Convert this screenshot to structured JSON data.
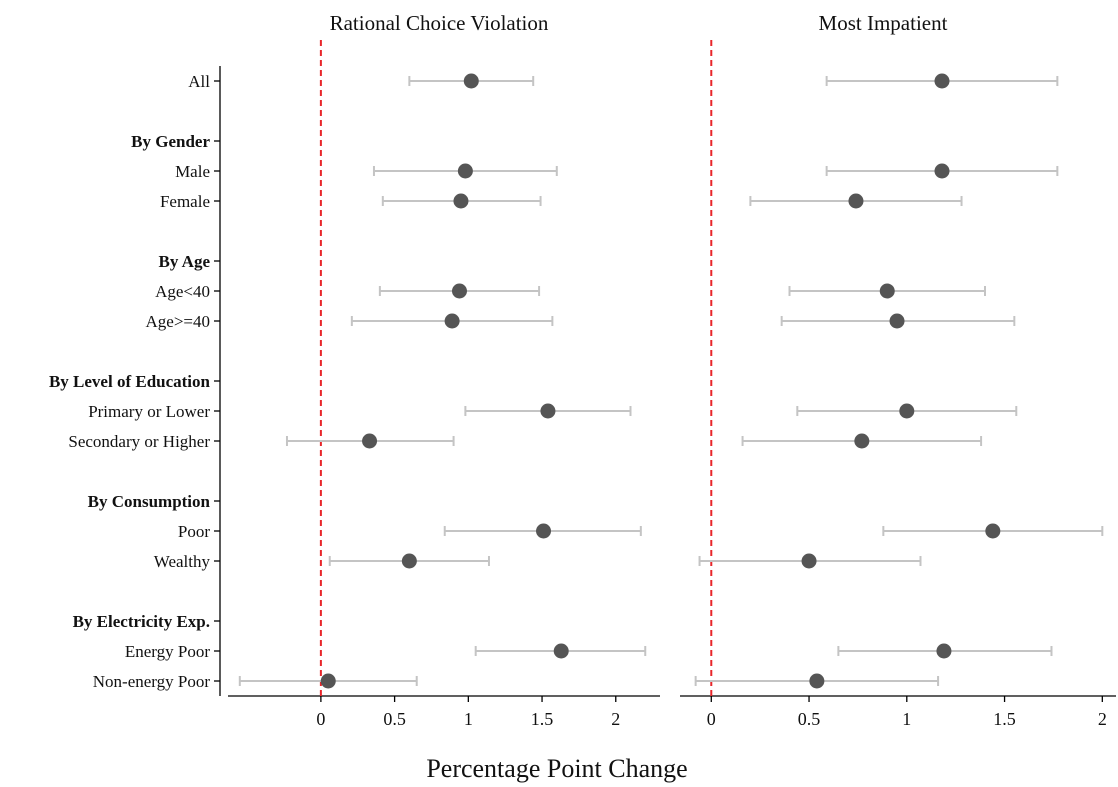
{
  "chart_data": {
    "type": "scatter",
    "x_title": "Percentage Point Change",
    "xticks": [
      "0",
      "0.5",
      "1",
      "1.5",
      "2"
    ],
    "xtick_values": [
      0,
      0.5,
      1,
      1.5,
      2
    ],
    "reference_line": {
      "x": 0,
      "style": "dashed",
      "color": "#e8262b"
    },
    "rows": [
      {
        "label": "All",
        "header": false
      },
      {
        "label": "By Gender",
        "header": true
      },
      {
        "label": "Male",
        "header": false
      },
      {
        "label": "Female",
        "header": false
      },
      {
        "label": "By Age",
        "header": true
      },
      {
        "label": "Age<40",
        "header": false
      },
      {
        "label": "Age>=40",
        "header": false
      },
      {
        "label": "By Level of Education",
        "header": true
      },
      {
        "label": "Primary or Lower",
        "header": false
      },
      {
        "label": "Secondary or Higher",
        "header": false
      },
      {
        "label": "By Consumption",
        "header": true
      },
      {
        "label": "Poor",
        "header": false
      },
      {
        "label": "Wealthy",
        "header": false
      },
      {
        "label": "By Electricity Exp.",
        "header": true
      },
      {
        "label": "Energy Poor",
        "header": false
      },
      {
        "label": "Non-energy Poor",
        "header": false
      }
    ],
    "panels": [
      {
        "title": "Rational Choice Violation",
        "xlim": [
          -0.63,
          2.3
        ],
        "points": [
          {
            "label": "All",
            "estimate": 1.02,
            "ci_low": 0.6,
            "ci_high": 1.44
          },
          {
            "label": "Male",
            "estimate": 0.98,
            "ci_low": 0.36,
            "ci_high": 1.6
          },
          {
            "label": "Female",
            "estimate": 0.95,
            "ci_low": 0.42,
            "ci_high": 1.49
          },
          {
            "label": "Age<40",
            "estimate": 0.94,
            "ci_low": 0.4,
            "ci_high": 1.48
          },
          {
            "label": "Age>=40",
            "estimate": 0.89,
            "ci_low": 0.21,
            "ci_high": 1.57
          },
          {
            "label": "Primary or Lower",
            "estimate": 1.54,
            "ci_low": 0.98,
            "ci_high": 2.1
          },
          {
            "label": "Secondary or Higher",
            "estimate": 0.33,
            "ci_low": -0.23,
            "ci_high": 0.9
          },
          {
            "label": "Poor",
            "estimate": 1.51,
            "ci_low": 0.84,
            "ci_high": 2.17
          },
          {
            "label": "Wealthy",
            "estimate": 0.6,
            "ci_low": 0.06,
            "ci_high": 1.14
          },
          {
            "label": "Energy Poor",
            "estimate": 1.63,
            "ci_low": 1.05,
            "ci_high": 2.2
          },
          {
            "label": "Non-energy Poor",
            "estimate": 0.05,
            "ci_low": -0.55,
            "ci_high": 0.65
          }
        ]
      },
      {
        "title": "Most Impatient",
        "xlim": [
          -0.16,
          2.07
        ],
        "points": [
          {
            "label": "All",
            "estimate": 1.18,
            "ci_low": 0.59,
            "ci_high": 1.77
          },
          {
            "label": "Male",
            "estimate": 1.18,
            "ci_low": 0.59,
            "ci_high": 1.77
          },
          {
            "label": "Female",
            "estimate": 0.74,
            "ci_low": 0.2,
            "ci_high": 1.28
          },
          {
            "label": "Age<40",
            "estimate": 0.9,
            "ci_low": 0.4,
            "ci_high": 1.4
          },
          {
            "label": "Age>=40",
            "estimate": 0.95,
            "ci_low": 0.36,
            "ci_high": 1.55
          },
          {
            "label": "Primary or Lower",
            "estimate": 1.0,
            "ci_low": 0.44,
            "ci_high": 1.56
          },
          {
            "label": "Secondary or Higher",
            "estimate": 0.77,
            "ci_low": 0.16,
            "ci_high": 1.38
          },
          {
            "label": "Poor",
            "estimate": 1.44,
            "ci_low": 0.88,
            "ci_high": 2.0
          },
          {
            "label": "Wealthy",
            "estimate": 0.5,
            "ci_low": -0.06,
            "ci_high": 1.07
          },
          {
            "label": "Energy Poor",
            "estimate": 1.19,
            "ci_low": 0.65,
            "ci_high": 1.74
          },
          {
            "label": "Non-energy Poor",
            "estimate": 0.54,
            "ci_low": -0.08,
            "ci_high": 1.16
          }
        ]
      }
    ]
  }
}
